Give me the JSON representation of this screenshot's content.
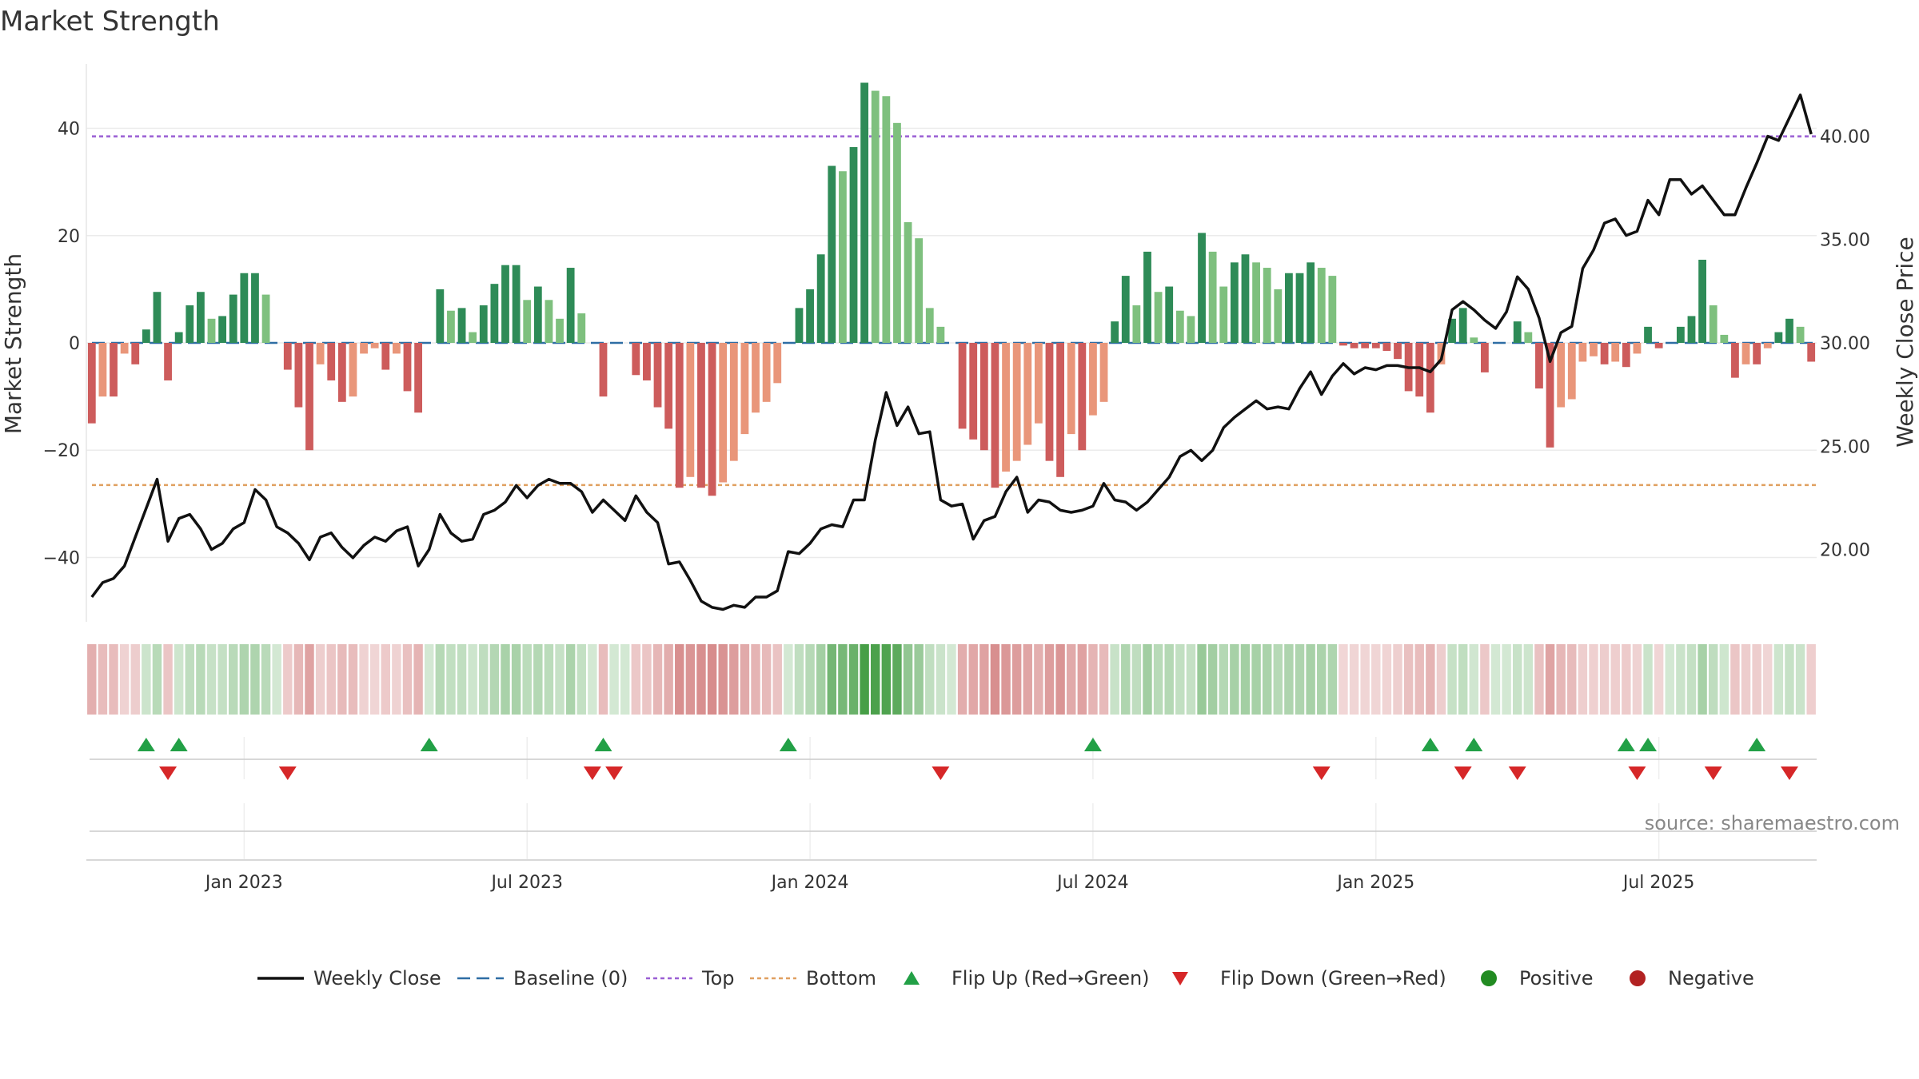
{
  "chart_data": {
    "type": "bar",
    "title": "Market Strength",
    "ylabel_left": "Market Strength",
    "ylabel_right": "Weekly Close Price",
    "ylim_left": [
      -52,
      52
    ],
    "ylim_right": [
      16.5,
      43.5
    ],
    "left_ticks": [
      {
        "value": 40,
        "label": "40"
      },
      {
        "value": 20,
        "label": "20"
      },
      {
        "value": 0,
        "label": "0"
      },
      {
        "value": -20,
        "label": "−20"
      },
      {
        "value": -40,
        "label": "−40"
      }
    ],
    "right_ticks": [
      {
        "value": 40,
        "label": "40.00"
      },
      {
        "value": 35,
        "label": "35.00"
      },
      {
        "value": 30,
        "label": "30.00"
      },
      {
        "value": 25,
        "label": "25.00"
      },
      {
        "value": 20,
        "label": "20.00"
      }
    ],
    "x_ticks": [
      {
        "week": 14,
        "label": "Jan 2023"
      },
      {
        "week": 40,
        "label": "Jul 2023"
      },
      {
        "week": 66,
        "label": "Jan 2024"
      },
      {
        "week": 92,
        "label": "Jul 2024"
      },
      {
        "week": 118,
        "label": "Jan 2025"
      },
      {
        "week": 144,
        "label": "Jul 2025"
      }
    ],
    "reference_lines": {
      "baseline": 0,
      "top": 38.5,
      "bottom": -26.5
    },
    "strength": [
      -15,
      -10,
      -10,
      -2,
      -4,
      2.5,
      9.5,
      -7,
      2,
      7,
      9.5,
      4.5,
      5,
      9,
      13,
      13,
      9,
      0,
      -5,
      -12,
      -20,
      -4,
      -7,
      -11,
      -10,
      -2,
      -1,
      -5,
      -2,
      -9,
      -13,
      0,
      10,
      6,
      6.5,
      2,
      7,
      11,
      14.5,
      14.5,
      8,
      10.5,
      8,
      4.5,
      14,
      5.5,
      0,
      -10,
      0,
      0,
      -6,
      -7,
      -12,
      -16,
      -27,
      -25,
      -27,
      -28.5,
      -26,
      -22,
      -17,
      -13,
      -11,
      -7.5,
      0,
      6.5,
      10,
      16.5,
      33,
      32,
      36.5,
      48.5,
      47,
      46,
      41,
      22.5,
      19.5,
      6.5,
      3,
      0,
      -16,
      -18,
      -20,
      -27,
      -24,
      -22,
      -19,
      -15,
      -22,
      -25,
      -17,
      -20,
      -13.5,
      -11,
      4,
      12.5,
      7,
      17,
      9.5,
      10.5,
      6,
      5,
      20.5,
      17,
      10.5,
      15,
      16.5,
      15,
      14,
      10,
      13,
      13,
      15,
      14,
      12.5,
      -0.5,
      -1,
      -1,
      -1,
      -1.5,
      -3,
      -9,
      -10,
      -13,
      -4,
      4.5,
      6.5,
      1,
      -5.5,
      0,
      0,
      4,
      2,
      -8.5,
      -19.5,
      -12,
      -10.5,
      -3.5,
      -2.5,
      -4,
      -3.5,
      -4.5,
      -2,
      3,
      -1,
      0,
      3,
      5,
      15.5,
      7,
      1.5,
      -6.5,
      -4,
      -4,
      -1,
      2,
      4.5,
      3,
      -3.5
    ],
    "close": [
      17.7,
      18.4,
      18.6,
      19.2,
      20.6,
      22,
      23.4,
      20.4,
      21.5,
      21.7,
      21,
      20,
      20.3,
      21,
      21.3,
      22.9,
      22.4,
      21.1,
      20.8,
      20.3,
      19.5,
      20.6,
      20.8,
      20.1,
      19.6,
      20.2,
      20.6,
      20.4,
      20.9,
      21.1,
      19.2,
      20,
      21.7,
      20.8,
      20.4,
      20.5,
      21.7,
      21.9,
      22.3,
      23.1,
      22.5,
      23.1,
      23.4,
      23.2,
      23.2,
      22.8,
      21.8,
      22.4,
      21.9,
      21.4,
      22.6,
      21.8,
      21.3,
      19.3,
      19.4,
      18.5,
      17.5,
      17.2,
      17.1,
      17.3,
      17.2,
      17.7,
      17.7,
      18,
      19.9,
      19.8,
      20.3,
      21,
      21.2,
      21.1,
      22.4,
      22.4,
      25.3,
      27.6,
      26,
      26.9,
      25.6,
      25.7,
      22.4,
      22.1,
      22.2,
      20.5,
      21.4,
      21.6,
      22.8,
      23.5,
      21.8,
      22.4,
      22.3,
      21.9,
      21.8,
      21.9,
      22.1,
      23.2,
      22.4,
      22.3,
      21.9,
      22.3,
      22.9,
      23.5,
      24.5,
      24.8,
      24.3,
      24.8,
      25.9,
      26.4,
      26.8,
      27.2,
      26.8,
      26.9,
      26.8,
      27.8,
      28.6,
      27.5,
      28.4,
      29,
      28.5,
      28.8,
      28.7,
      28.9,
      28.9,
      28.8,
      28.8,
      28.6,
      29.2,
      31.6,
      32,
      31.6,
      31.1,
      30.7,
      31.5,
      33.2,
      32.6,
      31.2,
      29.1,
      30.5,
      30.8,
      33.6,
      34.5,
      35.8,
      36,
      35.2,
      35.4,
      36.9,
      36.2,
      37.9,
      37.9,
      37.2,
      37.6,
      36.9,
      36.2,
      36.2,
      37.5,
      38.7,
      40,
      39.8,
      40.9,
      42,
      40.1
    ],
    "flip_up_weeks": [
      5,
      8,
      31,
      47,
      64,
      92,
      123,
      127,
      141,
      143,
      153
    ],
    "flip_down_weeks": [
      7,
      18,
      46,
      48,
      78,
      113,
      126,
      131,
      142,
      149,
      156
    ],
    "legend": [
      {
        "key": "weekly-close",
        "label": "Weekly Close",
        "color": "#111111"
      },
      {
        "key": "baseline",
        "label": "Baseline (0)",
        "color": "#2e6da4"
      },
      {
        "key": "top",
        "label": "Top",
        "color": "#9a5fd4"
      },
      {
        "key": "bottom",
        "label": "Bottom",
        "color": "#e0a060"
      },
      {
        "key": "flip-up",
        "label": "Flip Up (Red→Green)",
        "color": "#22a046"
      },
      {
        "key": "flip-down",
        "label": "Flip Down (Green→Red)",
        "color": "#d62728"
      },
      {
        "key": "positive",
        "label": "Positive",
        "color": "#228b22"
      },
      {
        "key": "negative",
        "label": "Negative",
        "color": "#b22222"
      }
    ],
    "source": "source: sharemaestro.com"
  },
  "colors": {
    "strong_green": "#2e8b57",
    "light_green": "#7ec07e",
    "strong_red": "#cd5c5c",
    "light_red": "#e9967a",
    "line": "#111111",
    "grid": "#ebebeb"
  }
}
